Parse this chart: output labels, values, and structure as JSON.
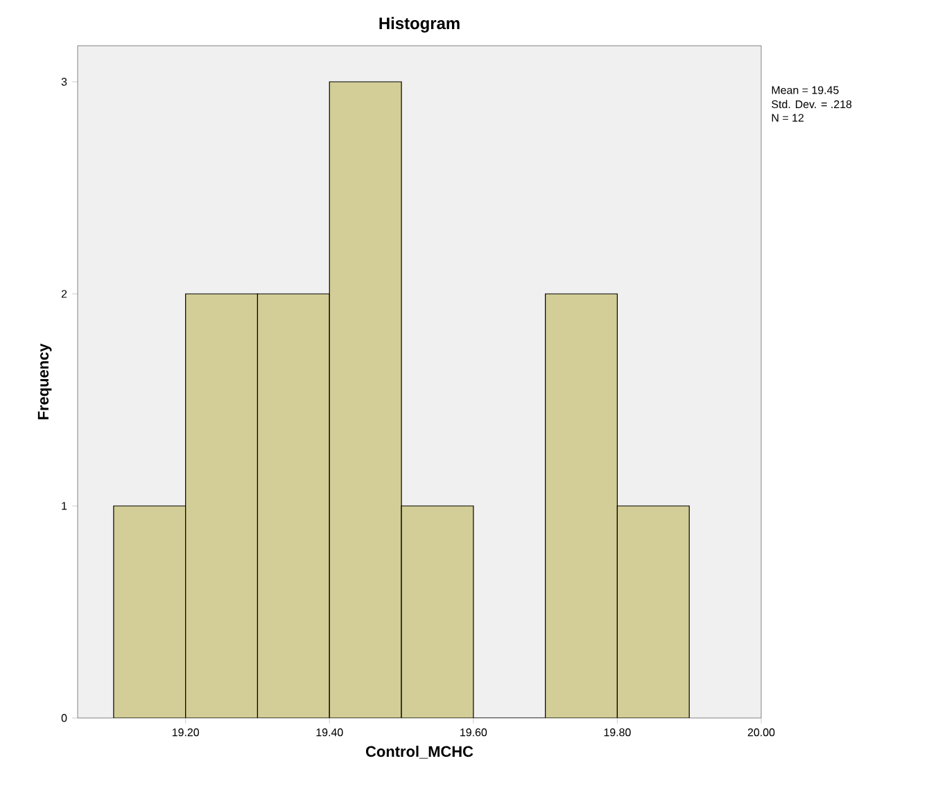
{
  "chart_data": {
    "type": "histogram",
    "title": "Histogram",
    "xlabel": "Control_MCHC",
    "ylabel": "Frequency",
    "bins": [
      19.1,
      19.2,
      19.3,
      19.4,
      19.5,
      19.6,
      19.7,
      19.8,
      19.9
    ],
    "values": [
      1,
      2,
      2,
      3,
      1,
      0,
      2,
      1
    ],
    "color": "#d3ce97",
    "xlim": [
      19.05,
      20.0
    ],
    "ylim": [
      0,
      3.17
    ],
    "xticks": [
      {
        "value": 19.2,
        "label": "19.20"
      },
      {
        "value": 19.4,
        "label": "19.40"
      },
      {
        "value": 19.6,
        "label": "19.60"
      },
      {
        "value": 19.8,
        "label": "19.80"
      },
      {
        "value": 20.0,
        "label": "20.00"
      }
    ],
    "yticks": [
      0,
      1,
      2,
      3
    ],
    "annotations": [
      "Mean = 19.45",
      "Std. Dev. = .218",
      "N = 12"
    ]
  }
}
